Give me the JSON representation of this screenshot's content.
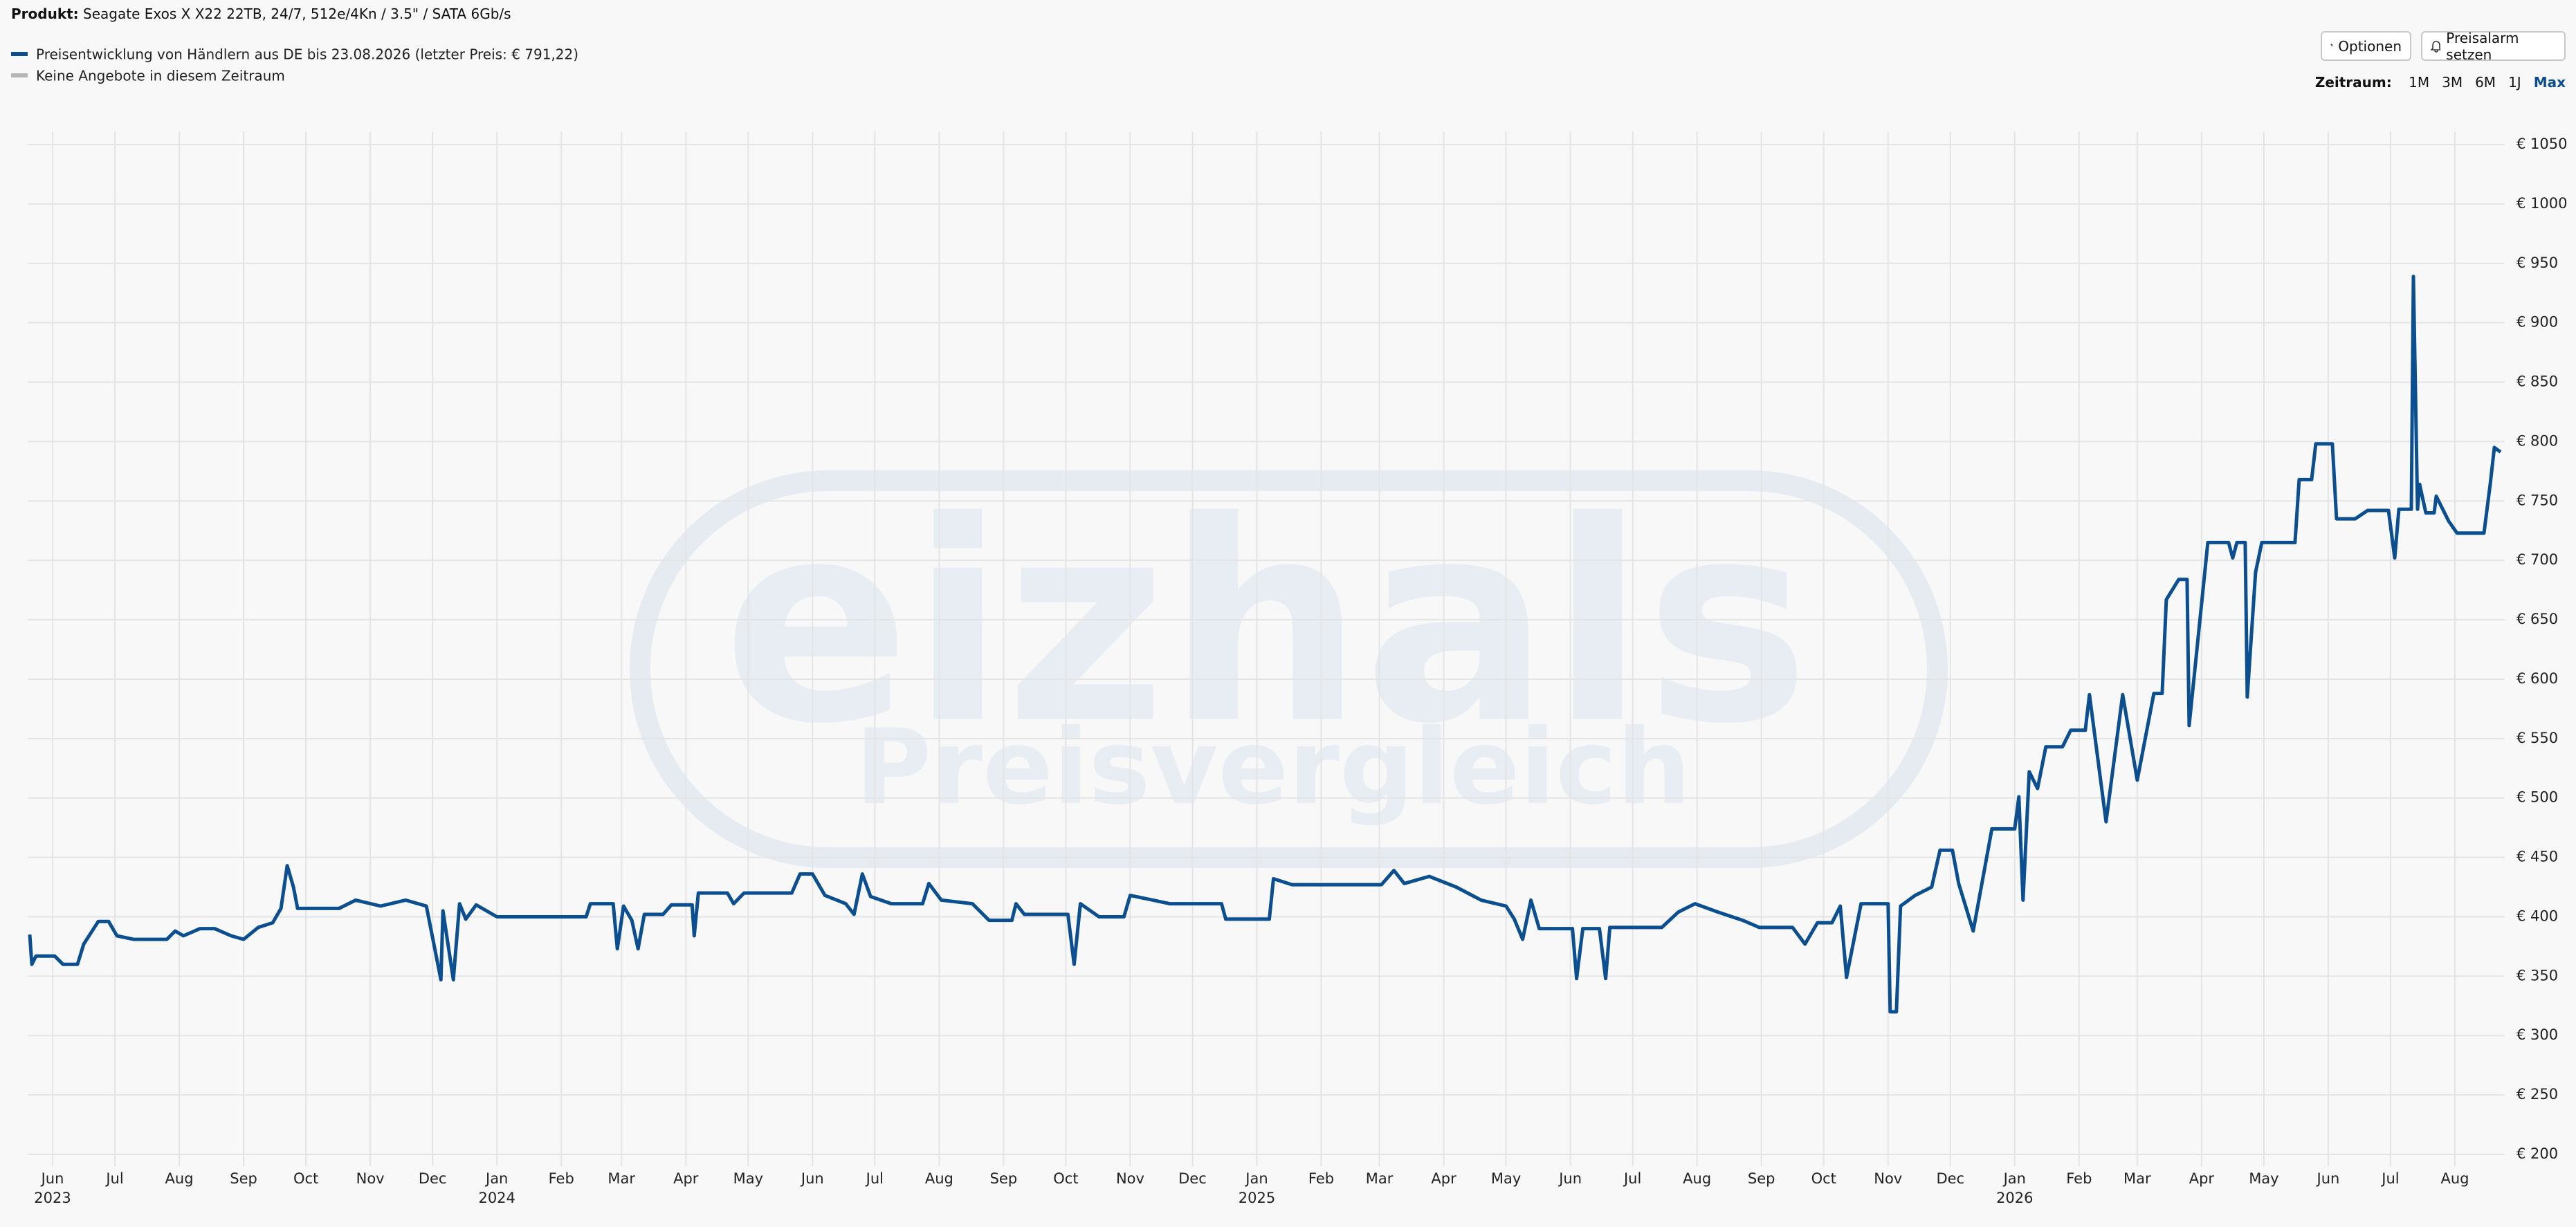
{
  "header": {
    "product_label": "Produkt:",
    "product": "Seagate Exos X X22 22TB, 24/7, 512e/4Kn / 3.5\" / SATA 6Gb/s"
  },
  "buttons": {
    "options": "Optionen",
    "price_alert": "Preisalarm setzen"
  },
  "range": {
    "label": "Zeitraum:",
    "options": [
      "1M",
      "3M",
      "6M",
      "1J",
      "Max"
    ],
    "active": "Max"
  },
  "watermark": {
    "brand": "eizhals",
    "tagline": "Preisvergleich"
  },
  "chart_data": {
    "type": "line",
    "series": [
      {
        "name": "Preisentwicklung von Händlern aus DE bis 23.08.2026 (letzter Preis: € 791,22)",
        "color": "#0b4f91",
        "values": [
          385,
          360,
          367,
          367,
          360,
          360,
          377,
          396,
          396,
          384,
          381,
          381,
          388,
          384,
          390,
          390,
          384,
          381,
          391,
          395,
          407,
          443,
          425,
          407,
          407,
          414,
          409,
          414,
          409,
          347,
          405,
          347,
          411,
          398,
          410,
          400,
          400,
          400,
          411,
          411,
          373,
          409,
          397,
          373,
          402,
          402,
          410,
          410,
          384,
          420,
          420,
          411,
          420,
          420,
          436,
          436,
          418,
          411,
          402,
          436,
          417,
          411,
          411,
          428,
          414,
          411,
          397,
          397,
          411,
          402,
          402,
          360,
          411,
          400,
          400,
          418,
          414,
          411,
          411,
          398,
          398,
          432,
          427,
          427,
          439,
          428,
          434,
          425,
          414,
          409,
          398,
          381,
          414,
          390,
          390,
          348,
          390,
          390,
          348,
          391,
          391,
          404,
          411,
          404,
          397,
          391,
          391,
          377,
          395,
          395,
          409,
          349,
          411,
          411,
          320,
          320,
          409,
          418,
          425,
          456,
          456,
          428,
          388,
          474,
          474,
          501,
          414,
          522,
          508,
          543,
          543,
          557,
          557,
          587,
          480,
          587,
          515,
          588,
          588,
          667,
          684,
          684,
          561,
          715,
          715,
          702,
          715,
          715,
          585,
          690,
          715,
          715,
          768,
          768,
          798,
          798,
          735,
          735,
          742,
          742,
          702,
          743,
          743,
          939,
          743,
          764,
          740,
          740,
          754,
          733,
          723,
          723,
          764,
          795,
          791.22
        ]
      }
    ],
    "x": [
      "2023-05-21",
      "2023-05-22",
      "2023-05-24",
      "2023-06-02",
      "2023-06-06",
      "2023-06-13",
      "2023-06-16",
      "2023-06-23",
      "2023-06-28",
      "2023-07-02",
      "2023-07-10",
      "2023-07-26",
      "2023-07-30",
      "2023-08-03",
      "2023-08-11",
      "2023-08-18",
      "2023-08-26",
      "2023-09-01",
      "2023-09-08",
      "2023-09-15",
      "2023-09-19",
      "2023-09-22",
      "2023-09-25",
      "2023-09-27",
      "2023-10-17",
      "2023-10-25",
      "2023-11-06",
      "2023-11-18",
      "2023-11-28",
      "2023-12-05",
      "2023-12-06",
      "2023-12-11",
      "2023-12-14",
      "2023-12-17",
      "2023-12-22",
      "2024-01-01",
      "2024-02-01",
      "2024-02-13",
      "2024-02-15",
      "2024-02-26",
      "2024-02-28",
      "2024-03-02",
      "2024-03-06",
      "2024-03-09",
      "2024-03-12",
      "2024-03-21",
      "2024-03-25",
      "2024-04-04",
      "2024-04-05",
      "2024-04-07",
      "2024-04-21",
      "2024-04-24",
      "2024-04-29",
      "2024-05-22",
      "2024-05-26",
      "2024-06-01",
      "2024-06-07",
      "2024-06-17",
      "2024-06-21",
      "2024-06-25",
      "2024-06-29",
      "2024-07-09",
      "2024-07-24",
      "2024-07-27",
      "2024-08-02",
      "2024-08-17",
      "2024-08-25",
      "2024-09-05",
      "2024-09-07",
      "2024-09-11",
      "2024-10-02",
      "2024-10-05",
      "2024-10-08",
      "2024-10-17",
      "2024-10-29",
      "2024-11-01",
      "2024-11-12",
      "2024-11-20",
      "2024-12-15",
      "2024-12-17",
      "2025-01-07",
      "2025-01-09",
      "2025-01-18",
      "2025-03-02",
      "2025-03-08",
      "2025-03-13",
      "2025-03-25",
      "2025-04-07",
      "2025-04-19",
      "2025-05-01",
      "2025-05-05",
      "2025-05-09",
      "2025-05-13",
      "2025-05-17",
      "2025-06-02",
      "2025-06-04",
      "2025-06-07",
      "2025-06-15",
      "2025-06-18",
      "2025-06-20",
      "2025-07-15",
      "2025-07-23",
      "2025-07-31",
      "2025-08-11",
      "2025-08-23",
      "2025-08-31",
      "2025-09-16",
      "2025-09-22",
      "2025-09-28",
      "2025-10-05",
      "2025-10-09",
      "2025-10-12",
      "2025-10-19",
      "2025-11-01",
      "2025-11-02",
      "2025-11-05",
      "2025-11-07",
      "2025-11-14",
      "2025-11-22",
      "2025-11-26",
      "2025-12-02",
      "2025-12-05",
      "2025-12-12",
      "2025-12-21",
      "2026-01-01",
      "2026-01-03",
      "2026-01-05",
      "2026-01-08",
      "2026-01-12",
      "2026-01-16",
      "2026-01-24",
      "2026-01-28",
      "2026-02-04",
      "2026-02-06",
      "2026-02-14",
      "2026-02-22",
      "2026-03-01",
      "2026-03-09",
      "2026-03-13",
      "2026-03-15",
      "2026-03-21",
      "2026-03-25",
      "2026-03-26",
      "2026-04-04",
      "2026-04-14",
      "2026-04-16",
      "2026-04-18",
      "2026-04-22",
      "2026-04-23",
      "2026-04-27",
      "2026-04-30",
      "2026-05-16",
      "2026-05-18",
      "2026-05-24",
      "2026-05-26",
      "2026-06-03",
      "2026-06-05",
      "2026-06-14",
      "2026-06-20",
      "2026-06-30",
      "2026-07-03",
      "2026-07-05",
      "2026-07-11",
      "2026-07-12",
      "2026-07-14",
      "2026-07-15",
      "2026-07-18",
      "2026-07-22",
      "2026-07-23",
      "2026-07-29",
      "2026-08-02",
      "2026-08-15",
      "2026-08-18",
      "2026-08-20",
      "2026-08-23"
    ],
    "legend_extra": {
      "name": "Keine Angebote in diesem Zeitraum",
      "color": "#b5b5b5"
    },
    "xlim": [
      "2023-05-20",
      "2026-08-25"
    ],
    "xticks": [
      {
        "value": "2023-06-01",
        "label": "Jun"
      },
      {
        "value": "2023-07-01",
        "label": "Jul"
      },
      {
        "value": "2023-08-01",
        "label": "Aug"
      },
      {
        "value": "2023-09-01",
        "label": "Sep"
      },
      {
        "value": "2023-10-01",
        "label": "Oct"
      },
      {
        "value": "2023-11-01",
        "label": "Nov"
      },
      {
        "value": "2023-12-01",
        "label": "Dec"
      },
      {
        "value": "2024-01-01",
        "label": "Jan"
      },
      {
        "value": "2024-02-01",
        "label": "Feb"
      },
      {
        "value": "2024-03-01",
        "label": "Mar"
      },
      {
        "value": "2024-04-01",
        "label": "Apr"
      },
      {
        "value": "2024-05-01",
        "label": "May"
      },
      {
        "value": "2024-06-01",
        "label": "Jun"
      },
      {
        "value": "2024-07-01",
        "label": "Jul"
      },
      {
        "value": "2024-08-01",
        "label": "Aug"
      },
      {
        "value": "2024-09-01",
        "label": "Sep"
      },
      {
        "value": "2024-10-01",
        "label": "Oct"
      },
      {
        "value": "2024-11-01",
        "label": "Nov"
      },
      {
        "value": "2024-12-01",
        "label": "Dec"
      },
      {
        "value": "2025-01-01",
        "label": "Jan"
      },
      {
        "value": "2025-02-01",
        "label": "Feb"
      },
      {
        "value": "2025-03-01",
        "label": "Mar"
      },
      {
        "value": "2025-04-01",
        "label": "Apr"
      },
      {
        "value": "2025-05-01",
        "label": "May"
      },
      {
        "value": "2025-06-01",
        "label": "Jun"
      },
      {
        "value": "2025-07-01",
        "label": "Jul"
      },
      {
        "value": "2025-08-01",
        "label": "Aug"
      },
      {
        "value": "2025-09-01",
        "label": "Sep"
      },
      {
        "value": "2025-10-01",
        "label": "Oct"
      },
      {
        "value": "2025-11-01",
        "label": "Nov"
      },
      {
        "value": "2025-12-01",
        "label": "Dec"
      },
      {
        "value": "2026-01-01",
        "label": "Jan"
      },
      {
        "value": "2026-02-01",
        "label": "Feb"
      },
      {
        "value": "2026-03-01",
        "label": "Mar"
      },
      {
        "value": "2026-04-01",
        "label": "Apr"
      },
      {
        "value": "2026-05-01",
        "label": "May"
      },
      {
        "value": "2026-06-01",
        "label": "Jun"
      },
      {
        "value": "2026-07-01",
        "label": "Jul"
      },
      {
        "value": "2026-08-01",
        "label": "Aug"
      }
    ],
    "x_year_labels": [
      {
        "value": "2023-06-01",
        "label": "2023"
      },
      {
        "value": "2024-01-01",
        "label": "2024"
      },
      {
        "value": "2025-01-01",
        "label": "2025"
      },
      {
        "value": "2026-01-01",
        "label": "2026"
      }
    ],
    "ylim": [
      200,
      1050
    ],
    "yticks": [
      {
        "value": 200,
        "label": "€ 200"
      },
      {
        "value": 250,
        "label": "€ 250"
      },
      {
        "value": 300,
        "label": "€ 300"
      },
      {
        "value": 350,
        "label": "€ 350"
      },
      {
        "value": 400,
        "label": "€ 400"
      },
      {
        "value": 450,
        "label": "€ 450"
      },
      {
        "value": 500,
        "label": "€ 500"
      },
      {
        "value": 550,
        "label": "€ 550"
      },
      {
        "value": 600,
        "label": "€ 600"
      },
      {
        "value": 650,
        "label": "€ 650"
      },
      {
        "value": 700,
        "label": "€ 700"
      },
      {
        "value": 750,
        "label": "€ 750"
      },
      {
        "value": 800,
        "label": "€ 800"
      },
      {
        "value": 850,
        "label": "€ 850"
      },
      {
        "value": 900,
        "label": "€ 900"
      },
      {
        "value": 950,
        "label": "€ 950"
      },
      {
        "value": 1000,
        "label": "€ 1000"
      },
      {
        "value": 1050,
        "label": "€ 1050"
      }
    ],
    "grid": true
  }
}
